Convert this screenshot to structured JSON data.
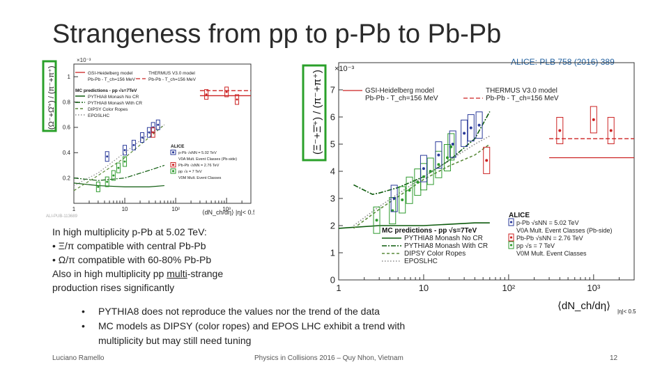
{
  "slide": {
    "title": "Strangeness from pp to p-Pb to Pb-Pb",
    "reference": "ALICE: PLB 758 (2016) 389",
    "text_lines": [
      {
        "pre": "In high multiplicity p-Pb at 5.02 TeV:",
        "u": "",
        "post": ""
      },
      {
        "pre": "•   Ξ/π compatible with central Pb-Pb",
        "u": "",
        "post": ""
      },
      {
        "pre": "•   Ω/π compatible with 60-80% Pb-Pb",
        "u": "",
        "post": ""
      },
      {
        "pre": "Also in high multiplicity pp ",
        "u": "multi",
        "post": "-strange"
      },
      {
        "pre": "production rises significantly",
        "u": "",
        "post": ""
      }
    ],
    "bullets": [
      {
        "mark": "•",
        "text": "PYTHIA8 does not reproduce the values nor the trend of the data"
      },
      {
        "mark": "•",
        "text": "MC models as DIPSY (color ropes) and EPOS LHC exhibit a trend with"
      },
      {
        "mark": "",
        "text": "multiplicity but may still need tuning"
      }
    ],
    "footer_left": "Luciano Ramello",
    "footer_center": "Physics in Collisions 2016 – Quy Nhon, Vietnam",
    "footer_right": "12"
  },
  "figure_left": {
    "y_exponent": "×10⁻³",
    "ylabel": "(Ω⁻+Ω̄⁺) / (π⁻+π⁺)",
    "yticks": [
      "0.2",
      "0.4",
      "0.6",
      "0.8",
      "1"
    ],
    "xticks": [
      "1",
      "10",
      "10²",
      "10³"
    ],
    "xlabel": "⟨dN_ch/dη⟩ |η|< 0.5",
    "watermark": "ALI-PUB-113689",
    "legend_models": [
      "GSI-Heidelberg model",
      "Pb-Pb - T_ch=156 MeV",
      "THERMUS V3.0 model",
      "Pb-Pb - T_ch=156 MeV"
    ],
    "legend_mc_title": "MC predictions - pp √s=7TeV",
    "legend_mc": [
      "PYTHIA8 Monash No CR",
      "PYTHIA8 Monash With CR",
      "DIPSY Color Ropes",
      "EPOSLHC"
    ],
    "legend_alice_title": "ALICE",
    "legend_alice": [
      "p-Pb √sNN = 5.02 TeV",
      "V0A Mult. Event Classes (Pb-side)",
      "Pb-Pb √sNN = 2.76 TeV",
      "pp √s = 7 TeV",
      "V0M Mult. Event Classes"
    ]
  },
  "figure_right": {
    "y_exponent": "×10⁻³",
    "ylabel": "(Ξ⁻+Ξ̄⁺) / (π⁻+π⁺)",
    "yticks": [
      "0",
      "1",
      "2",
      "3",
      "4",
      "5",
      "6",
      "7"
    ],
    "xticks": [
      "1",
      "10",
      "10²",
      "10³"
    ],
    "xlabel": "⟨dN_ch/dη⟩",
    "xlabel_sub": "|η|< 0.5",
    "legend_models": [
      "GSI-Heidelberg model",
      "Pb-Pb - T_ch=156 MeV",
      "THERMUS V3.0 model",
      "Pb-Pb - T_ch=156 MeV"
    ],
    "legend_mc_title": "MC predictions - pp √s=7TeV",
    "legend_mc": [
      "PYTHIA8 Monash No CR",
      "PYTHIA8 Monash With CR",
      "DIPSY Color Ropes",
      "EPOSLHC"
    ],
    "legend_alice_title": "ALICE",
    "legend_alice": [
      "p-Pb √sNN = 5.02 TeV",
      "V0A Mult. Event Classes (Pb-side)",
      "Pb-Pb √sNN = 2.76 TeV",
      "pp √s = 7 TeV",
      "V0M Mult. Event Classes"
    ]
  },
  "chart_data": [
    {
      "type": "scatter",
      "title": "",
      "xlabel": "⟨dNch/dη⟩ |η|< 0.5",
      "ylabel": "(Ω⁻+Ω̄⁺) / (π⁻+π⁺) ×10⁻³",
      "xscale": "log",
      "xlim": [
        1,
        3000
      ],
      "ylim": [
        0,
        1.1
      ],
      "series": [
        {
          "name": "pp √s = 7 TeV",
          "color": "#2e9a2e",
          "x": [
            3,
            4.5,
            6,
            7.5,
            10
          ],
          "y": [
            0.13,
            0.17,
            0.22,
            0.28,
            0.33
          ]
        },
        {
          "name": "p-Pb √sNN = 5.02 TeV",
          "color": "#2a3a9a",
          "x": [
            4.5,
            10,
            15,
            22,
            30,
            36,
            45
          ],
          "y": [
            0.37,
            0.42,
            0.46,
            0.52,
            0.56,
            0.6,
            0.62
          ]
        },
        {
          "name": "Pb-Pb √sNN = 2.76 TeV",
          "color": "#cc2222",
          "x": [
            36,
            400,
            1000,
            1600
          ],
          "y": [
            0.56,
            0.86,
            0.88,
            0.82
          ]
        },
        {
          "name": "PYTHIA8 Monash No CR",
          "color": "#0c5a0c",
          "x": [
            1,
            3,
            10,
            30,
            60
          ],
          "y": [
            0.16,
            0.14,
            0.13,
            0.13,
            0.14
          ]
        },
        {
          "name": "PYTHIA8 Monash With CR",
          "color": "#0c5a0c",
          "x": [
            1,
            3,
            10,
            30,
            60
          ],
          "y": [
            0.2,
            0.18,
            0.2,
            0.26,
            0.3
          ]
        },
        {
          "name": "DIPSY Color Ropes",
          "color": "#5a8a3a",
          "x": [
            1,
            3,
            10,
            30,
            60
          ],
          "y": [
            0.1,
            0.22,
            0.36,
            0.52,
            0.62
          ]
        },
        {
          "name": "EPOSLHC",
          "color": "#888888",
          "x": [
            1,
            3,
            10,
            30,
            60
          ],
          "y": [
            0.14,
            0.24,
            0.4,
            0.55,
            0.62
          ]
        }
      ],
      "reference_lines": [
        {
          "name": "GSI-Heidelberg model",
          "y": 0.85,
          "x_from": 300,
          "x_to": 3000,
          "style": "solid",
          "color": "#cc2222"
        },
        {
          "name": "THERMUS V3.0 model",
          "y": 0.89,
          "x_from": 300,
          "x_to": 3000,
          "style": "dashed",
          "color": "#cc2222"
        }
      ],
      "legend": "top-left"
    },
    {
      "type": "scatter",
      "title": "",
      "xlabel": "⟨dNch/dη⟩ |η|< 0.5",
      "ylabel": "(Ξ⁻+Ξ̄⁺) / (π⁻+π⁺) ×10⁻³",
      "xscale": "log",
      "xlim": [
        1,
        3000
      ],
      "ylim": [
        0,
        8
      ],
      "series": [
        {
          "name": "pp √s = 7 TeV",
          "color": "#2e9a2e",
          "x": [
            2.8,
            4.3,
            5.6,
            6.8,
            8.5,
            10,
            12,
            15,
            19,
            21
          ],
          "y": [
            2.2,
            2.55,
            2.95,
            3.3,
            3.6,
            3.8,
            4.0,
            4.25,
            4.5,
            4.9
          ]
        },
        {
          "name": "p-Pb √sNN = 5.02 TeV",
          "color": "#2a3a9a",
          "x": [
            4.5,
            10,
            15,
            22,
            30,
            36,
            45
          ],
          "y": [
            3.0,
            4.1,
            4.6,
            5.0,
            5.4,
            5.6,
            5.7
          ]
        },
        {
          "name": "Pb-Pb √sNN = 2.76 TeV",
          "color": "#cc2222",
          "x": [
            55,
            400,
            1000,
            1600
          ],
          "y": [
            4.4,
            5.5,
            5.9,
            5.5
          ]
        },
        {
          "name": "PYTHIA8 Monash No CR",
          "color": "#0c5a0c",
          "x": [
            1,
            3,
            10,
            20,
            40,
            60
          ],
          "y": [
            1.9,
            2.0,
            2.0,
            2.05,
            2.1,
            2.1
          ]
        },
        {
          "name": "PYTHIA8 Monash With CR",
          "color": "#0c5a0c",
          "x": [
            1.5,
            2.5,
            3,
            5,
            10,
            20,
            40,
            60
          ],
          "y": [
            3.5,
            3.15,
            3.2,
            3.4,
            3.8,
            4.4,
            5.2,
            6.2
          ]
        },
        {
          "name": "DIPSY Color Ropes",
          "color": "#5a8a3a",
          "x": [
            1.5,
            3,
            10,
            20,
            40,
            60
          ],
          "y": [
            1.9,
            2.6,
            3.7,
            4.2,
            4.6,
            5.0
          ]
        },
        {
          "name": "EPOSLHC",
          "color": "#888888",
          "x": [
            1.5,
            3,
            10,
            20,
            40,
            60
          ],
          "y": [
            2.0,
            2.7,
            3.8,
            4.4,
            5.0,
            5.3
          ]
        }
      ],
      "reference_lines": [
        {
          "name": "GSI-Heidelberg model",
          "y": 4.5,
          "x_from": 300,
          "x_to": 3000,
          "style": "solid",
          "color": "#cc2222"
        },
        {
          "name": "THERMUS V3.0 model",
          "y": 5.2,
          "x_from": 300,
          "x_to": 3000,
          "style": "dashed",
          "color": "#cc2222"
        }
      ],
      "legend": "top"
    }
  ]
}
